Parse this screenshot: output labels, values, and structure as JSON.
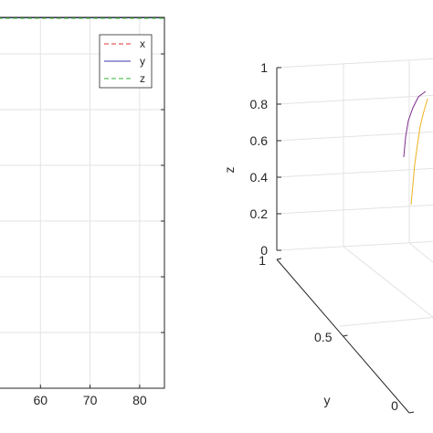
{
  "colors": {
    "x_series": "#e03030",
    "y_series": "#3838b0",
    "z_series": "#30b030",
    "traj_purple": "#7e2f8e",
    "traj_yellow": "#edb120",
    "axis": "#262626",
    "grid": "#e3e3e3",
    "background": "#ffffff"
  },
  "chart_data": [
    {
      "type": "line",
      "x_ticks": [
        "60",
        "70",
        "80"
      ],
      "xlim": [
        50,
        85
      ],
      "ylim": [
        0,
        1
      ],
      "grid": true,
      "legend": {
        "placement": "top-right",
        "entries": [
          "x",
          "y",
          "z"
        ],
        "styles": [
          "dashed",
          "solid",
          "dashed"
        ]
      },
      "series": [
        {
          "name": "x",
          "x": [
            50,
            55,
            60,
            65,
            70,
            75,
            80,
            85
          ],
          "values": [
            1,
            1,
            1,
            1,
            1,
            1,
            1,
            1
          ]
        },
        {
          "name": "y",
          "x": [
            50,
            55,
            60,
            65,
            70,
            75,
            80,
            85
          ],
          "values": [
            1,
            1,
            1,
            1,
            1,
            1,
            1,
            1
          ]
        },
        {
          "name": "z",
          "x": [
            50,
            55,
            60,
            65,
            70,
            75,
            80,
            85
          ],
          "values": [
            1,
            1,
            1,
            1,
            1,
            1,
            1,
            1
          ]
        }
      ]
    },
    {
      "type": "line3d",
      "zlabel": "z",
      "ylabel": "y",
      "z_ticks": [
        "0",
        "0.2",
        "0.4",
        "0.6",
        "0.8",
        "1"
      ],
      "y_ticks": [
        "0",
        "0.5",
        "1"
      ],
      "x_tick_visible": "0",
      "zlim": [
        0,
        1
      ],
      "grid": true,
      "series": [
        {
          "color": "purple",
          "points": [
            [
              0.02,
              0.55,
              0.51
            ],
            [
              0.04,
              0.57,
              0.62
            ],
            [
              0.07,
              0.59,
              0.71
            ],
            [
              0.12,
              0.62,
              0.78
            ],
            [
              0.18,
              0.64,
              0.84
            ],
            [
              0.26,
              0.65,
              0.87
            ]
          ]
        },
        {
          "color": "yellow",
          "points": [
            [
              0.1,
              0.71,
              0.25
            ],
            [
              0.12,
              0.69,
              0.36
            ],
            [
              0.14,
              0.67,
              0.47
            ],
            [
              0.17,
              0.66,
              0.58
            ],
            [
              0.2,
              0.64,
              0.68
            ],
            [
              0.24,
              0.63,
              0.76
            ],
            [
              0.28,
              0.62,
              0.83
            ]
          ]
        }
      ]
    }
  ]
}
